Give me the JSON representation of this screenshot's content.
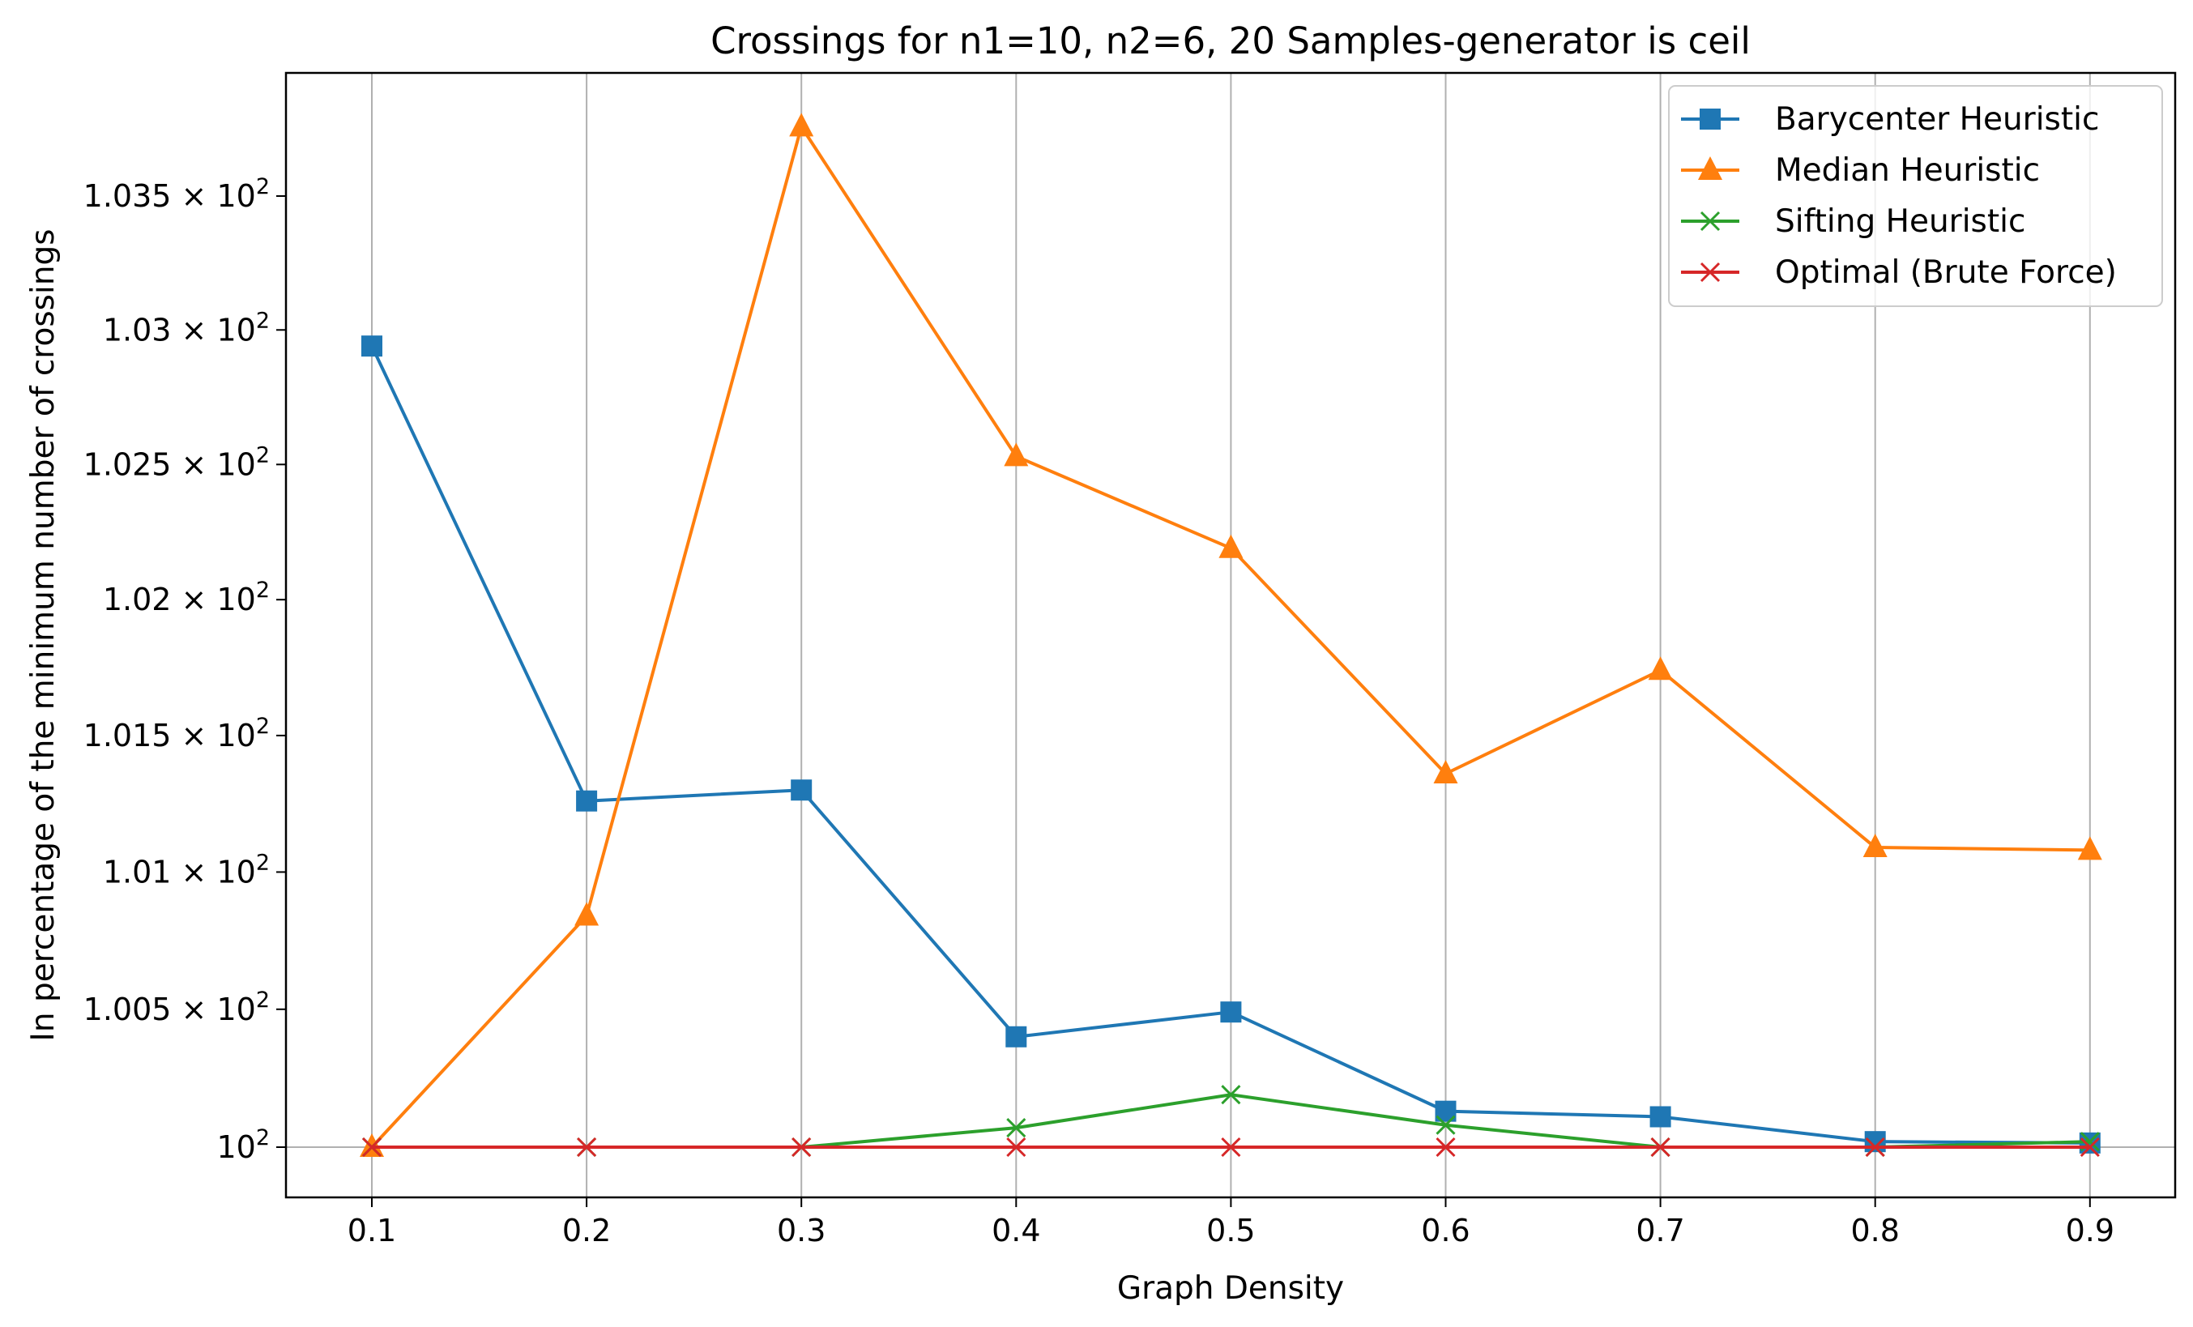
{
  "chart_data": {
    "type": "line",
    "title": "Crossings for n1=10, n2=6, 20 Samples-generator is ceil",
    "xlabel": "Graph Density",
    "ylabel": "In percentage of the minimum number of crossings",
    "x": [
      0.1,
      0.2,
      0.3,
      0.4,
      0.5,
      0.6,
      0.7,
      0.8,
      0.9
    ],
    "xticks": [
      "0.1",
      "0.2",
      "0.3",
      "0.4",
      "0.5",
      "0.6",
      "0.7",
      "0.8",
      "0.9"
    ],
    "xlim": [
      0.06,
      0.94
    ],
    "ylim": [
      99.81,
      103.95
    ],
    "y_scale": "log",
    "yticks": [
      {
        "value": 100.0,
        "mant": "10",
        "exp": "2"
      },
      {
        "value": 100.5,
        "mant": "1.005 × 10",
        "exp": "2"
      },
      {
        "value": 101.0,
        "mant": "1.01 × 10",
        "exp": "2"
      },
      {
        "value": 101.5,
        "mant": "1.015 × 10",
        "exp": "2"
      },
      {
        "value": 102.0,
        "mant": "1.02 × 10",
        "exp": "2"
      },
      {
        "value": 102.5,
        "mant": "1.025 × 10",
        "exp": "2"
      },
      {
        "value": 103.0,
        "mant": "1.03 × 10",
        "exp": "2"
      },
      {
        "value": 103.5,
        "mant": "1.035 × 10",
        "exp": "2"
      }
    ],
    "grid": "x",
    "legend_position": "top-right",
    "series": [
      {
        "name": "Barycenter Heuristic",
        "color": "#1f77b4",
        "marker": "square",
        "values": [
          102.94,
          101.26,
          101.3,
          100.4,
          100.49,
          100.13,
          100.11,
          100.02,
          100.015
        ]
      },
      {
        "name": "Median Heuristic",
        "color": "#ff7f0e",
        "marker": "triangle",
        "values": [
          100.0,
          100.84,
          103.76,
          102.53,
          102.19,
          101.36,
          101.74,
          101.09,
          101.08
        ]
      },
      {
        "name": "Sifting Heuristic",
        "color": "#2ca02c",
        "marker": "x",
        "values": [
          100.0,
          100.0,
          100.0,
          100.07,
          100.19,
          100.08,
          100.0,
          100.0,
          100.02
        ]
      },
      {
        "name": "Optimal (Brute Force)",
        "color": "#d62728",
        "marker": "x",
        "values": [
          100.0,
          100.0,
          100.0,
          100.0,
          100.0,
          100.0,
          100.0,
          100.0,
          100.0
        ]
      }
    ]
  }
}
